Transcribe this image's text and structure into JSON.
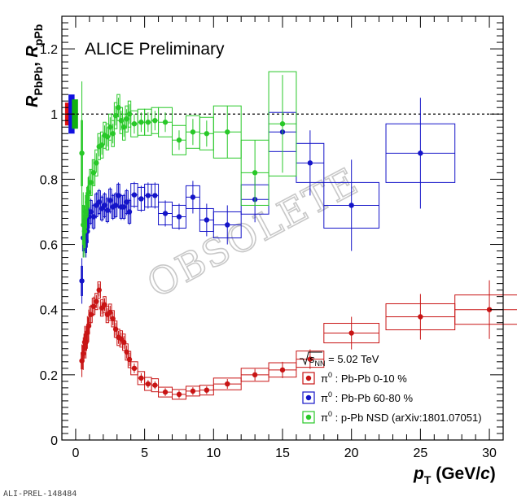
{
  "chart_data": {
    "type": "scatter",
    "title": "",
    "annotation": "ALICE Preliminary",
    "watermark": "OBSOLETE",
    "credit": "ALI-PREL-148484",
    "xlabel": {
      "main": "p",
      "sub": "T",
      "unit_open": " (GeV/",
      "unit_italic": "c",
      "unit_close": ")"
    },
    "ylabel": {
      "r1": "R",
      "s1": "PbPb",
      "sep": ", ",
      "r2": "R",
      "s2": "pPb"
    },
    "xlim": [
      -1,
      31
    ],
    "ylim": [
      0,
      1.3
    ],
    "x_ticks": [
      0,
      5,
      10,
      15,
      20,
      25,
      30
    ],
    "y_ticks": [
      0,
      0.2,
      0.4,
      0.6,
      0.8,
      1,
      1.2
    ],
    "x_tick_labels": [
      "0",
      "5",
      "10",
      "15",
      "20",
      "25",
      "30"
    ],
    "y_tick_labels": [
      "0",
      "0.2",
      "0.4",
      "0.6",
      "0.8",
      "1",
      "1.2"
    ],
    "reference_line": 1,
    "legend_header": {
      "root": "s",
      "sub": "NN",
      "value": " = 5.02 TeV"
    },
    "legend_placement": "bottom-right",
    "normalization_boxes": [
      {
        "x": -0.55,
        "half_width": 0.22,
        "low": 0.965,
        "high": 1.035,
        "color": "#e01010"
      },
      {
        "x": -0.3,
        "half_width": 0.22,
        "low": 0.94,
        "high": 1.06,
        "color": "#1010e0"
      },
      {
        "x": -0.05,
        "half_width": 0.22,
        "low": 0.955,
        "high": 1.045,
        "color": "#10b010"
      }
    ],
    "series": [
      {
        "name": "π⁰ : Pb-Pb  0-10 %",
        "legend": {
          "sym": "π",
          "sup": "0",
          "rest": " : Pb-Pb  0-10 %"
        },
        "color": "#c81414",
        "points": [
          [
            0.45,
            0.243,
            0.05,
            0.025,
            0.05
          ],
          [
            0.55,
            0.265,
            0.05,
            0.025,
            0.05
          ],
          [
            0.65,
            0.3,
            0.05,
            0.025,
            0.05
          ],
          [
            0.75,
            0.3,
            0.05,
            0.025,
            0.05
          ],
          [
            0.85,
            0.33,
            0.05,
            0.025,
            0.05
          ],
          [
            0.95,
            0.35,
            0.05,
            0.025,
            0.05
          ],
          [
            1.1,
            0.385,
            0.1,
            0.025,
            0.03
          ],
          [
            1.3,
            0.41,
            0.1,
            0.025,
            0.03
          ],
          [
            1.5,
            0.425,
            0.1,
            0.025,
            0.02
          ],
          [
            1.7,
            0.46,
            0.1,
            0.025,
            0.02
          ],
          [
            1.9,
            0.405,
            0.1,
            0.025,
            0.02
          ],
          [
            2.1,
            0.415,
            0.1,
            0.025,
            0.02
          ],
          [
            2.3,
            0.385,
            0.1,
            0.025,
            0.02
          ],
          [
            2.5,
            0.392,
            0.1,
            0.025,
            0.02
          ],
          [
            2.7,
            0.372,
            0.1,
            0.025,
            0.02
          ],
          [
            2.9,
            0.34,
            0.1,
            0.025,
            0.02
          ],
          [
            3.1,
            0.315,
            0.1,
            0.025,
            0.02
          ],
          [
            3.3,
            0.31,
            0.1,
            0.025,
            0.02
          ],
          [
            3.5,
            0.3,
            0.1,
            0.025,
            0.02
          ],
          [
            3.7,
            0.27,
            0.1,
            0.025,
            0.02
          ],
          [
            3.9,
            0.247,
            0.1,
            0.025,
            0.02
          ],
          [
            4.25,
            0.22,
            0.25,
            0.02,
            0.015
          ],
          [
            4.75,
            0.19,
            0.25,
            0.02,
            0.015
          ],
          [
            5.25,
            0.172,
            0.25,
            0.02,
            0.012
          ],
          [
            5.75,
            0.168,
            0.25,
            0.02,
            0.012
          ],
          [
            6.5,
            0.147,
            0.5,
            0.015,
            0.012
          ],
          [
            7.5,
            0.14,
            0.5,
            0.015,
            0.012
          ],
          [
            8.5,
            0.15,
            0.5,
            0.015,
            0.012
          ],
          [
            9.5,
            0.153,
            0.5,
            0.015,
            0.012
          ],
          [
            11,
            0.172,
            1,
            0.018,
            0.015
          ],
          [
            13,
            0.2,
            1,
            0.02,
            0.018
          ],
          [
            15,
            0.215,
            1,
            0.022,
            0.025
          ],
          [
            17,
            0.248,
            1,
            0.025,
            0.03
          ],
          [
            20,
            0.328,
            2,
            0.03,
            0.05
          ],
          [
            25,
            0.378,
            2.5,
            0.04,
            0.07
          ],
          [
            30,
            0.4,
            2.5,
            0.045,
            0.09
          ]
        ]
      },
      {
        "name": "π⁰ : Pb-Pb 60-80 %",
        "legend": {
          "sym": "π",
          "sup": "0",
          "rest": " : Pb-Pb 60-80 %"
        },
        "color": "#1414c8",
        "points": [
          [
            0.45,
            0.488,
            0.05,
            0.045,
            0.07
          ],
          [
            0.55,
            0.62,
            0.05,
            0.04,
            0.06
          ],
          [
            0.65,
            0.64,
            0.05,
            0.04,
            0.05
          ],
          [
            0.75,
            0.61,
            0.05,
            0.035,
            0.05
          ],
          [
            0.85,
            0.64,
            0.05,
            0.035,
            0.05
          ],
          [
            0.95,
            0.685,
            0.05,
            0.035,
            0.05
          ],
          [
            1.1,
            0.7,
            0.1,
            0.035,
            0.04
          ],
          [
            1.3,
            0.685,
            0.1,
            0.035,
            0.04
          ],
          [
            1.5,
            0.72,
            0.1,
            0.035,
            0.04
          ],
          [
            1.7,
            0.73,
            0.1,
            0.035,
            0.04
          ],
          [
            1.9,
            0.71,
            0.1,
            0.035,
            0.04
          ],
          [
            2.1,
            0.72,
            0.1,
            0.035,
            0.04
          ],
          [
            2.3,
            0.705,
            0.1,
            0.035,
            0.04
          ],
          [
            2.5,
            0.735,
            0.1,
            0.035,
            0.04
          ],
          [
            2.7,
            0.715,
            0.1,
            0.035,
            0.04
          ],
          [
            2.9,
            0.72,
            0.1,
            0.035,
            0.04
          ],
          [
            3.1,
            0.75,
            0.1,
            0.035,
            0.04
          ],
          [
            3.3,
            0.715,
            0.1,
            0.035,
            0.04
          ],
          [
            3.5,
            0.715,
            0.1,
            0.035,
            0.04
          ],
          [
            3.7,
            0.73,
            0.1,
            0.035,
            0.04
          ],
          [
            3.9,
            0.7,
            0.1,
            0.035,
            0.04
          ],
          [
            4.25,
            0.752,
            0.25,
            0.035,
            0.04
          ],
          [
            4.75,
            0.74,
            0.25,
            0.035,
            0.04
          ],
          [
            5.25,
            0.75,
            0.25,
            0.035,
            0.04
          ],
          [
            5.75,
            0.75,
            0.25,
            0.035,
            0.04
          ],
          [
            6.5,
            0.695,
            0.5,
            0.035,
            0.04
          ],
          [
            7.5,
            0.685,
            0.5,
            0.035,
            0.04
          ],
          [
            8.5,
            0.745,
            0.5,
            0.035,
            0.05
          ],
          [
            9.5,
            0.675,
            0.5,
            0.035,
            0.05
          ],
          [
            11,
            0.66,
            1,
            0.04,
            0.06
          ],
          [
            13,
            0.738,
            1,
            0.045,
            0.07
          ],
          [
            15,
            0.945,
            1,
            0.06,
            0.09
          ],
          [
            17,
            0.85,
            1,
            0.06,
            0.1
          ],
          [
            20,
            0.72,
            2,
            0.07,
            0.14
          ],
          [
            25,
            0.88,
            2.5,
            0.09,
            0.17
          ]
        ]
      },
      {
        "name": "π⁰ : p-Pb NSD (arXiv:1801.07051)",
        "legend": {
          "sym": "π",
          "sup": "0",
          "rest": " : p-Pb NSD (arXiv:1801.07051)"
        },
        "color": "#28c828",
        "points": [
          [
            0.45,
            0.88,
            0.05,
            0.1,
            0.22
          ],
          [
            0.55,
            0.66,
            0.05,
            0.06,
            0.1
          ],
          [
            0.65,
            0.64,
            0.05,
            0.05,
            0.08
          ],
          [
            0.75,
            0.7,
            0.05,
            0.05,
            0.06
          ],
          [
            0.85,
            0.73,
            0.05,
            0.045,
            0.05
          ],
          [
            0.95,
            0.76,
            0.05,
            0.045,
            0.05
          ],
          [
            1.1,
            0.79,
            0.1,
            0.04,
            0.04
          ],
          [
            1.3,
            0.82,
            0.1,
            0.04,
            0.04
          ],
          [
            1.5,
            0.85,
            0.1,
            0.04,
            0.03
          ],
          [
            1.7,
            0.9,
            0.1,
            0.04,
            0.03
          ],
          [
            1.9,
            0.905,
            0.1,
            0.04,
            0.03
          ],
          [
            2.1,
            0.935,
            0.1,
            0.04,
            0.03
          ],
          [
            2.3,
            0.93,
            0.1,
            0.04,
            0.03
          ],
          [
            2.5,
            0.96,
            0.1,
            0.04,
            0.03
          ],
          [
            2.7,
            0.94,
            0.1,
            0.04,
            0.03
          ],
          [
            2.9,
            0.995,
            0.1,
            0.04,
            0.03
          ],
          [
            3.1,
            1.02,
            0.1,
            0.04,
            0.03
          ],
          [
            3.3,
            0.98,
            0.1,
            0.04,
            0.03
          ],
          [
            3.5,
            0.96,
            0.1,
            0.04,
            0.03
          ],
          [
            3.7,
            0.985,
            0.1,
            0.04,
            0.03
          ],
          [
            3.9,
            1.0,
            0.1,
            0.04,
            0.03
          ],
          [
            4.25,
            0.97,
            0.25,
            0.04,
            0.03
          ],
          [
            4.75,
            0.975,
            0.25,
            0.04,
            0.03
          ],
          [
            5.25,
            0.975,
            0.25,
            0.04,
            0.03
          ],
          [
            5.75,
            0.98,
            0.25,
            0.04,
            0.03
          ],
          [
            6.5,
            0.975,
            0.5,
            0.045,
            0.03
          ],
          [
            7.5,
            0.92,
            0.5,
            0.045,
            0.03
          ],
          [
            8.5,
            0.945,
            0.5,
            0.05,
            0.04
          ],
          [
            9.5,
            0.94,
            0.5,
            0.05,
            0.04
          ],
          [
            11,
            0.945,
            1,
            0.08,
            0.08
          ],
          [
            13,
            0.82,
            1,
            0.1,
            0.1
          ],
          [
            15,
            0.97,
            1,
            0.16,
            0.15
          ]
        ]
      }
    ]
  }
}
